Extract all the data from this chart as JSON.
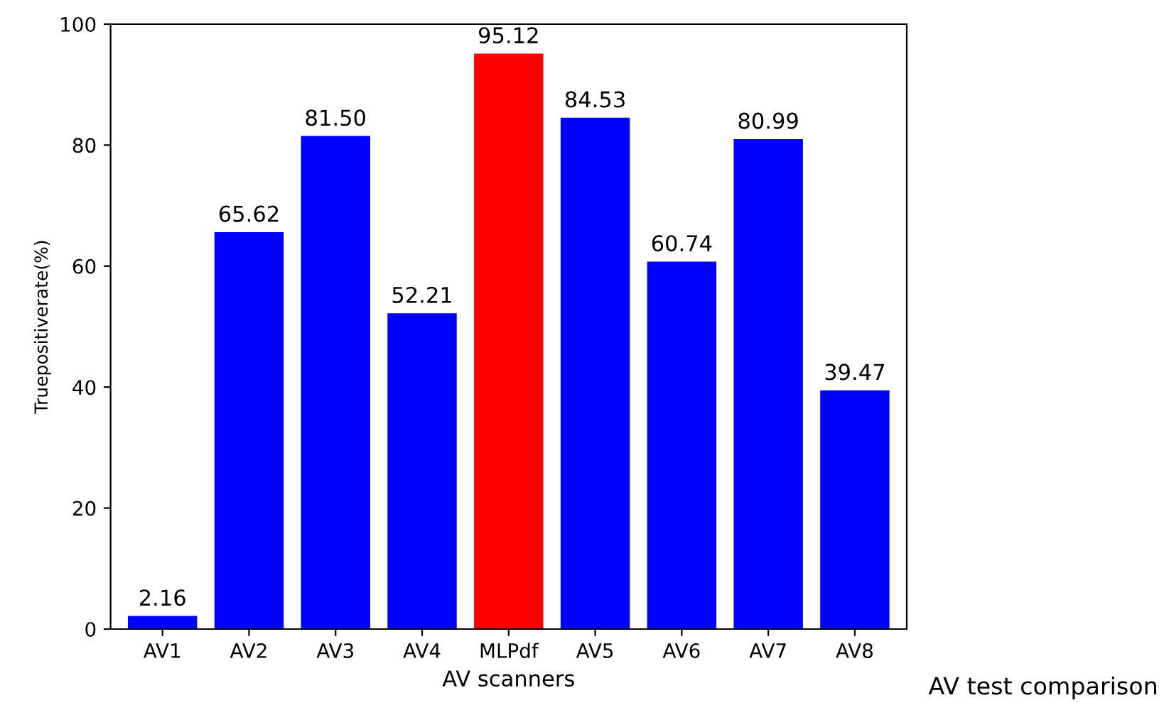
{
  "chart_data": {
    "type": "bar",
    "xlabel": "AV scanners",
    "ylabel": "Truepositiverate(%)",
    "categories": [
      "AV1",
      "AV2",
      "AV3",
      "AV4",
      "MLPdf",
      "AV5",
      "AV6",
      "AV7",
      "AV8"
    ],
    "values": [
      2.16,
      65.62,
      81.5,
      52.21,
      95.12,
      84.53,
      60.74,
      80.99,
      39.47
    ],
    "value_labels": [
      "2.16",
      "65.62",
      "81.50",
      "52.21",
      "95.12",
      "84.53",
      "60.74",
      "80.99",
      "39.47"
    ],
    "colors": [
      "#0000ff",
      "#0000ff",
      "#0000ff",
      "#0000ff",
      "#ff0000",
      "#0000ff",
      "#0000ff",
      "#0000ff",
      "#0000ff"
    ],
    "ylim": [
      0,
      100
    ],
    "yticks": [
      0,
      20,
      40,
      60,
      80,
      100
    ],
    "grid": false,
    "annotations": [
      "AV test comparison"
    ]
  }
}
